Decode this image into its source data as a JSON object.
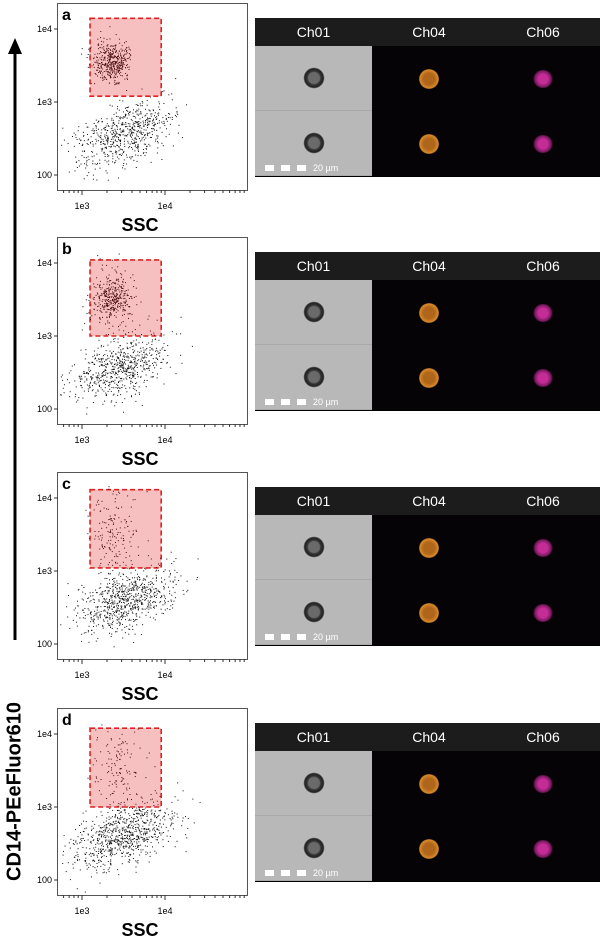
{
  "y_axis_label": "CD14-PEeFluor610",
  "channels": [
    "Ch01",
    "Ch04",
    "Ch06"
  ],
  "scale_bar": "20 µm",
  "colors": {
    "gate_fill": "#f7c0c0",
    "gate_stroke": "#e02020",
    "orange": "#d98a2a",
    "magenta": "#c42c96"
  },
  "chart_data": [
    {
      "type": "scatter",
      "panel": "a",
      "xlabel": "SSC",
      "ylabel": "CD14-PEeFluor610",
      "xscale": "log",
      "yscale": "log",
      "xlim": [
        500,
        100000
      ],
      "ylim": [
        60,
        23000
      ],
      "xticks": [
        "1e3",
        "1e4"
      ],
      "yticks": [
        "100",
        "1e3",
        "1e4"
      ],
      "gate": {
        "x": [
          1250,
          9000
        ],
        "y": [
          1200,
          14000
        ]
      },
      "clusters": [
        {
          "name": "gated",
          "center": [
            2300,
            3600
          ],
          "log_sd": [
            0.12,
            0.15
          ],
          "n": 420
        },
        {
          "name": "low",
          "center": [
            3200,
            360
          ],
          "log_sd": [
            0.3,
            0.2
          ],
          "n": 650
        }
      ]
    },
    {
      "type": "scatter",
      "panel": "b",
      "xlabel": "SSC",
      "ylabel": "CD14-PEeFluor610",
      "xscale": "log",
      "yscale": "log",
      "xlim": [
        500,
        100000
      ],
      "ylim": [
        60,
        23000
      ],
      "xticks": [
        "1e3",
        "1e4"
      ],
      "yticks": [
        "100",
        "1e3",
        "1e4"
      ],
      "gate": {
        "x": [
          1250,
          9000
        ],
        "y": [
          1000,
          11000
        ]
      },
      "clusters": [
        {
          "name": "gated",
          "center": [
            2300,
            3300
          ],
          "log_sd": [
            0.12,
            0.17
          ],
          "n": 380
        },
        {
          "name": "low",
          "center": [
            3000,
            380
          ],
          "log_sd": [
            0.3,
            0.2
          ],
          "n": 650
        }
      ]
    },
    {
      "type": "scatter",
      "panel": "c",
      "xlabel": "SSC",
      "ylabel": "CD14-PEeFluor610",
      "xscale": "log",
      "yscale": "log",
      "xlim": [
        500,
        100000
      ],
      "ylim": [
        60,
        23000
      ],
      "xticks": [
        "1e3",
        "1e4"
      ],
      "yticks": [
        "100",
        "1e3",
        "1e4"
      ],
      "gate": {
        "x": [
          1250,
          9000
        ],
        "y": [
          1100,
          13000
        ]
      },
      "clusters": [
        {
          "name": "gated",
          "center": [
            2500,
            3500
          ],
          "log_sd": [
            0.15,
            0.25
          ],
          "n": 160
        },
        {
          "name": "low",
          "center": [
            3300,
            400
          ],
          "log_sd": [
            0.3,
            0.2
          ],
          "n": 750
        }
      ]
    },
    {
      "type": "scatter",
      "panel": "d",
      "xlabel": "SSC",
      "ylabel": "CD14-PEeFluor610",
      "xscale": "log",
      "yscale": "log",
      "xlim": [
        500,
        100000
      ],
      "ylim": [
        60,
        23000
      ],
      "xticks": [
        "1e3",
        "1e4"
      ],
      "yticks": [
        "100",
        "1e3",
        "1e4"
      ],
      "gate": {
        "x": [
          1250,
          9000
        ],
        "y": [
          1000,
          12000
        ]
      },
      "clusters": [
        {
          "name": "gated",
          "center": [
            2800,
            3000
          ],
          "log_sd": [
            0.15,
            0.3
          ],
          "n": 130
        },
        {
          "name": "low",
          "center": [
            3100,
            420
          ],
          "log_sd": [
            0.3,
            0.2
          ],
          "n": 800
        }
      ]
    }
  ]
}
